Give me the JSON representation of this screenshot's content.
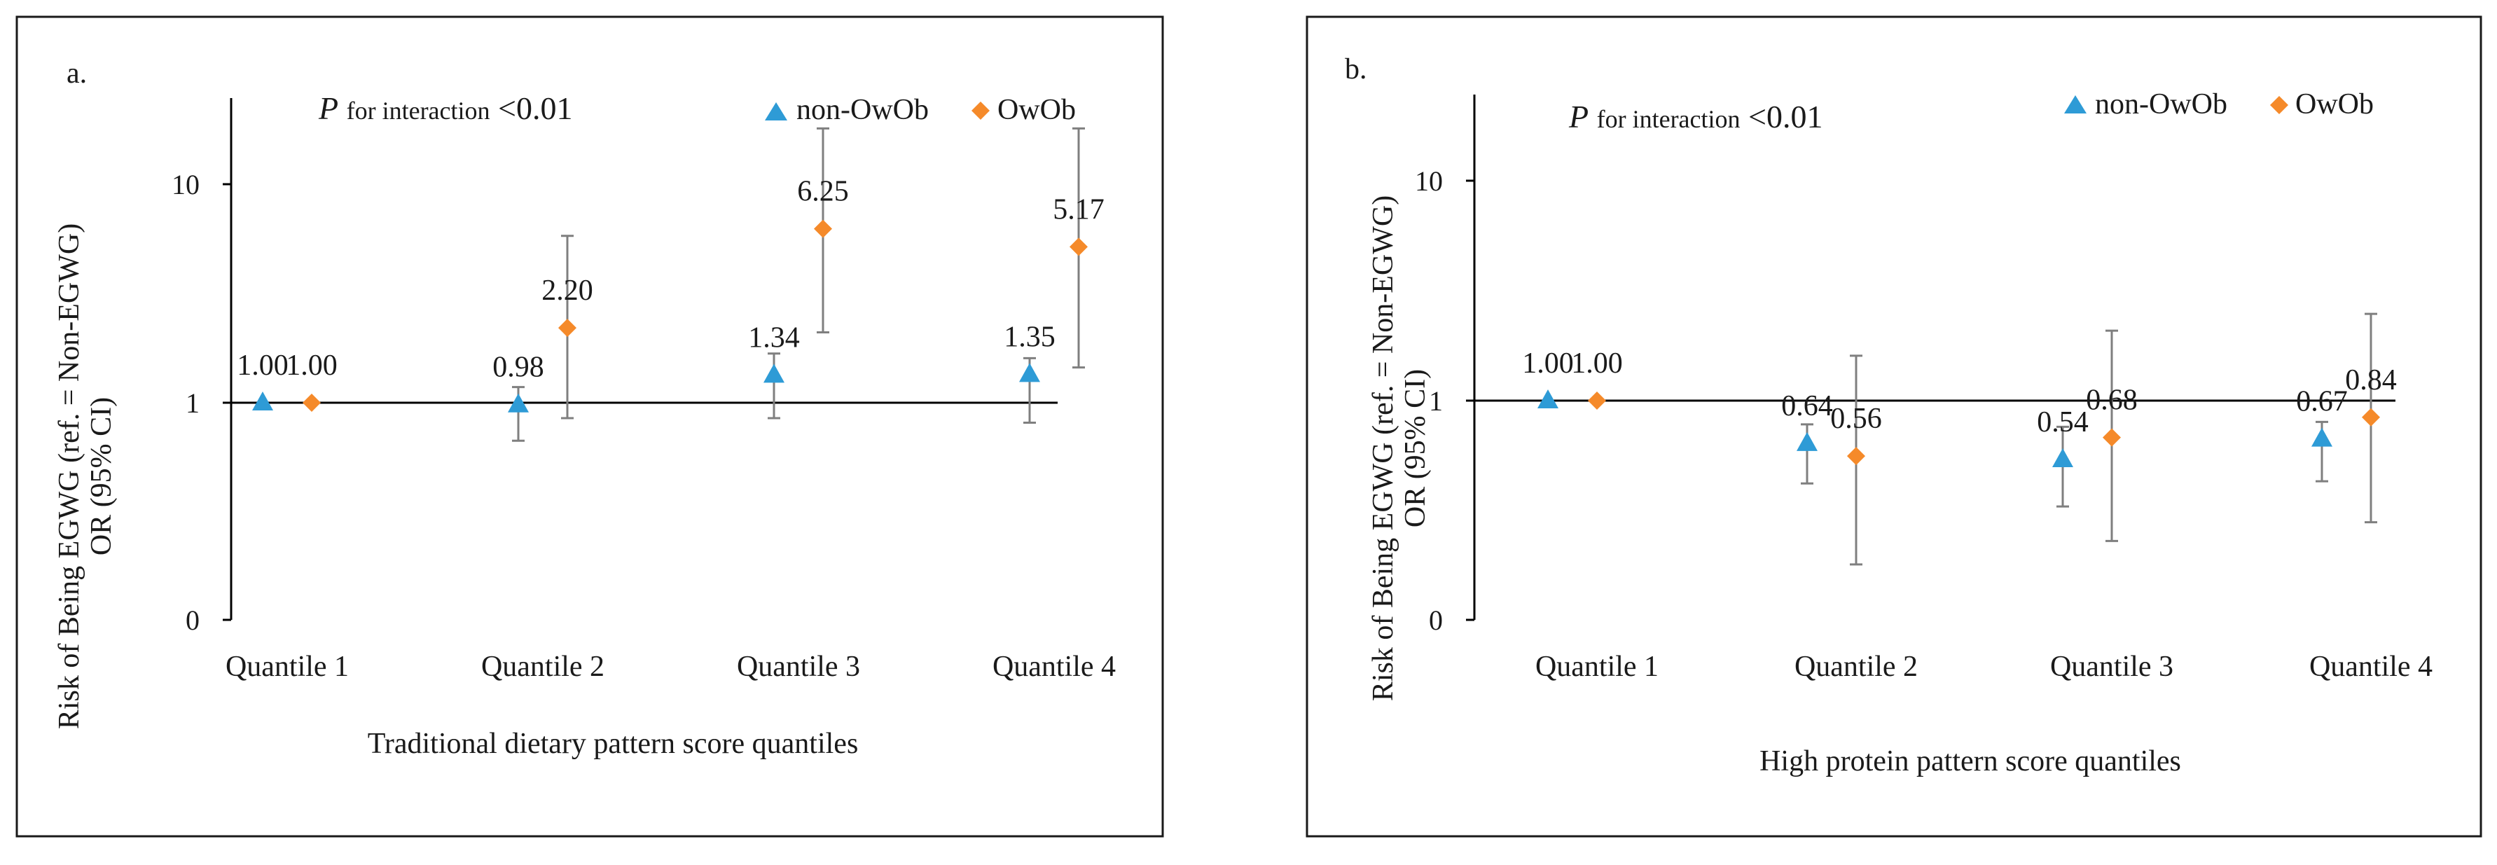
{
  "colors": {
    "nonOwOb": "#2e9bd6",
    "OwOb": "#f58a2a",
    "errbar": "#7f7f7f",
    "axis": "#000000",
    "frame": "#1a1a1a"
  },
  "chart_data": [
    {
      "type": "scatter",
      "panel_label": "a.",
      "interaction_prefix": "P",
      "interaction_text": "for interaction",
      "interaction_value": "<0.01",
      "ylabel_line1": "Risk of Being EGWG (ref. = Non-EGWG)",
      "ylabel_line2": "OR (95% CI)",
      "xlabel": "Traditional dietary pattern score quantiles",
      "y_scale": "log",
      "ylim": [
        0.1,
        25
      ],
      "y_ticks": [
        {
          "value": 0.1,
          "label": "0"
        },
        {
          "value": 1,
          "label": "1"
        },
        {
          "value": 10,
          "label": "10"
        }
      ],
      "categories": [
        "Quantile 1",
        "Quantile 2",
        "Quantile 3",
        "Quantile 4"
      ],
      "series": [
        {
          "name": "non-OwOb",
          "marker": "triangle",
          "values": [
            1.0,
            0.98,
            1.34,
            1.35
          ],
          "labels": [
            "1.00",
            "0.98",
            "1.34",
            "1.35"
          ],
          "ci_low": [
            null,
            0.67,
            0.85,
            0.81
          ],
          "ci_high": [
            null,
            1.18,
            1.68,
            1.6
          ]
        },
        {
          "name": "OwOb",
          "marker": "diamond",
          "values": [
            1.0,
            2.2,
            6.25,
            5.17
          ],
          "labels": [
            "1.00",
            "2.20",
            "6.25",
            "5.17"
          ],
          "ci_low": [
            null,
            0.85,
            2.1,
            1.45
          ],
          "ci_high": [
            null,
            5.8,
            18.0,
            18.0
          ]
        }
      ]
    },
    {
      "type": "scatter",
      "panel_label": "b.",
      "interaction_prefix": "P",
      "interaction_text": "for interaction",
      "interaction_value": "<0.01",
      "ylabel_line1": "Risk of Being EGWG (ref. = Non-EGWG)",
      "ylabel_line2": "OR (95% CI)",
      "xlabel": "High protein pattern score quantiles",
      "y_scale": "log",
      "ylim": [
        0.1,
        25
      ],
      "y_ticks": [
        {
          "value": 0.1,
          "label": "0"
        },
        {
          "value": 1,
          "label": "1"
        },
        {
          "value": 10,
          "label": "10"
        }
      ],
      "categories": [
        "Quantile 1",
        "Quantile 2",
        "Quantile 3",
        "Quantile 4"
      ],
      "series": [
        {
          "name": "non-OwOb",
          "marker": "triangle",
          "values": [
            1.0,
            0.64,
            0.54,
            0.67
          ],
          "labels": [
            "1.00",
            "0.64",
            "0.54",
            "0.67"
          ],
          "ci_low": [
            null,
            0.42,
            0.33,
            0.43
          ],
          "ci_high": [
            null,
            0.78,
            0.76,
            0.8
          ]
        },
        {
          "name": "OwOb",
          "marker": "diamond",
          "values": [
            1.0,
            0.56,
            0.68,
            0.84
          ],
          "labels": [
            "1.00",
            "0.56",
            "0.68",
            "0.84"
          ],
          "ci_low": [
            null,
            0.18,
            0.23,
            0.28
          ],
          "ci_high": [
            null,
            1.6,
            2.08,
            2.48
          ]
        }
      ]
    }
  ]
}
